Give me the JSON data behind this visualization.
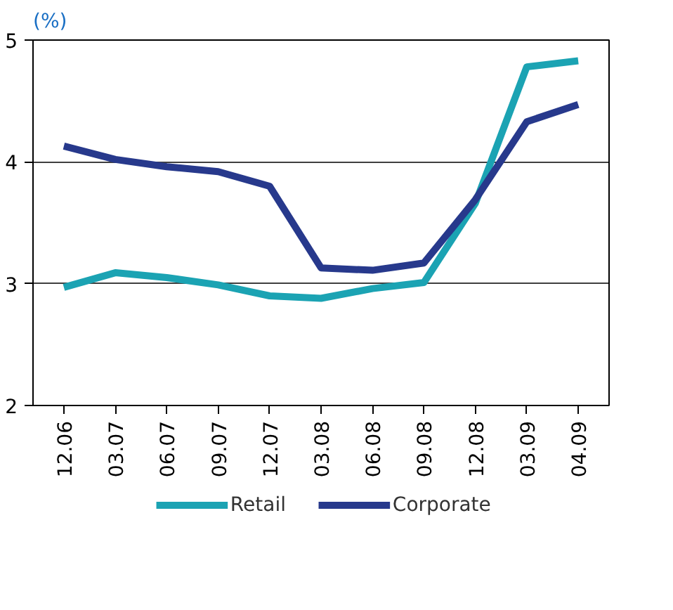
{
  "chart_data": {
    "type": "line",
    "title": "(%)",
    "categories": [
      "12.06",
      "03.07",
      "06.07",
      "09.07",
      "12.07",
      "03.08",
      "06.08",
      "09.08",
      "12.08",
      "03.09",
      "04.09"
    ],
    "series": [
      {
        "name": "Retail",
        "color": "#1ba3b3",
        "values": [
          2.97,
          3.09,
          3.05,
          2.99,
          2.9,
          2.88,
          2.96,
          3.01,
          3.66,
          4.78,
          4.83
        ]
      },
      {
        "name": "Corporate",
        "color": "#27398c",
        "values": [
          4.13,
          4.02,
          3.96,
          3.92,
          3.8,
          3.13,
          3.11,
          3.17,
          3.69,
          4.33,
          4.47
        ]
      }
    ],
    "ylim": [
      2,
      5
    ],
    "yticks": [
      2,
      3,
      4,
      5
    ],
    "grid": "y",
    "legend": "bottom",
    "marker": "none",
    "line_style": "solid"
  }
}
